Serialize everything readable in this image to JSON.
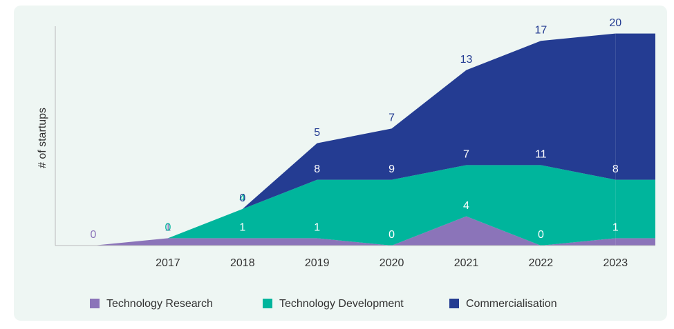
{
  "chart_data": {
    "type": "stacked_area",
    "y_label": "# of startups",
    "categories": [
      null,
      "2017",
      "2018",
      "2019",
      "2020",
      "2021",
      "2022",
      "2023"
    ],
    "ylim": [
      0,
      30
    ],
    "series": [
      {
        "name": "Technology Research",
        "color": "#8b74b9",
        "values": [
          0,
          1,
          1,
          1,
          0,
          4,
          0,
          1
        ]
      },
      {
        "name": "Technology Development",
        "color": "#00b59c",
        "values": [
          null,
          0,
          4,
          8,
          9,
          7,
          11,
          8
        ]
      },
      {
        "name": "Commercialisation",
        "color": "#243c92",
        "values": [
          null,
          null,
          0,
          5,
          7,
          13,
          17,
          20
        ]
      }
    ]
  }
}
